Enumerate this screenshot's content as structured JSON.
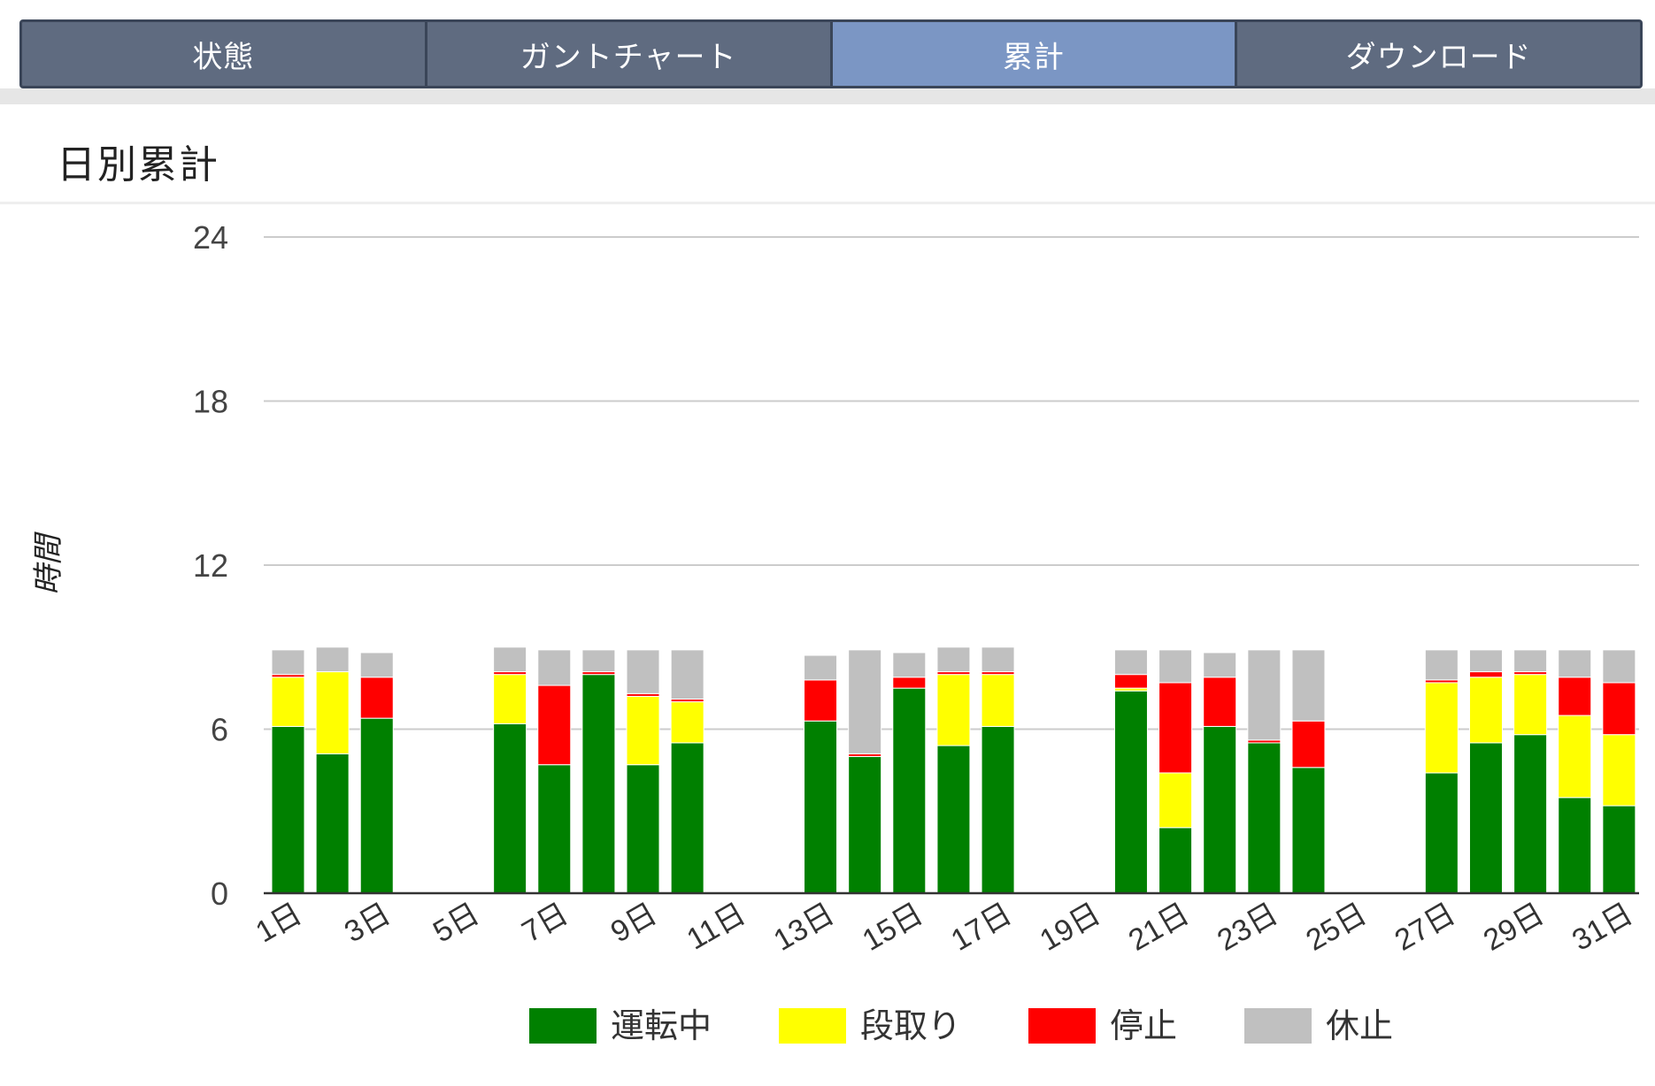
{
  "tabs": [
    {
      "label": "状態",
      "active": false
    },
    {
      "label": "ガントチャート",
      "active": false
    },
    {
      "label": "累計",
      "active": true
    },
    {
      "label": "ダウンロード",
      "active": false
    }
  ],
  "section": {
    "title": "日別累計"
  },
  "colors": {
    "運転中": "#008000",
    "段取り": "#ffff00",
    "停止": "#ff0000",
    "休止": "#c0c0c0",
    "tab": "#5f6b80",
    "tab_active": "#7b96c4"
  },
  "chart_data": {
    "type": "bar",
    "stacked": true,
    "ylabel": "時間",
    "xlabel": "",
    "ylim": [
      0,
      24
    ],
    "yticks": [
      0,
      6,
      12,
      18,
      24
    ],
    "grid": true,
    "legend_position": "bottom",
    "categories": [
      "1日",
      "2日",
      "3日",
      "4日",
      "5日",
      "6日",
      "7日",
      "8日",
      "9日",
      "10日",
      "11日",
      "12日",
      "13日",
      "14日",
      "15日",
      "16日",
      "17日",
      "18日",
      "19日",
      "20日",
      "21日",
      "22日",
      "23日",
      "24日",
      "25日",
      "26日",
      "27日",
      "28日",
      "29日",
      "30日",
      "31日"
    ],
    "xtick_labels": [
      "1日",
      "3日",
      "5日",
      "7日",
      "9日",
      "11日",
      "13日",
      "15日",
      "17日",
      "19日",
      "21日",
      "23日",
      "25日",
      "27日",
      "29日",
      "31日"
    ],
    "series": [
      {
        "name": "運転中",
        "color": "#008000",
        "values": [
          6.1,
          5.1,
          6.4,
          0,
          0,
          6.2,
          4.7,
          8.0,
          4.7,
          5.5,
          0,
          0,
          6.3,
          5.0,
          7.5,
          5.4,
          6.1,
          0,
          0,
          7.4,
          2.4,
          6.1,
          5.5,
          4.6,
          0,
          0,
          4.4,
          5.5,
          5.8,
          3.5,
          3.2
        ]
      },
      {
        "name": "段取り",
        "color": "#ffff00",
        "values": [
          1.8,
          3.0,
          0,
          0,
          0,
          1.8,
          0,
          0,
          2.5,
          1.5,
          0,
          0,
          0,
          0,
          0,
          2.6,
          1.9,
          0,
          0,
          0.1,
          2.0,
          0,
          0,
          0,
          0,
          0,
          3.3,
          2.4,
          2.2,
          3.0,
          2.6
        ]
      },
      {
        "name": "停止",
        "color": "#ff0000",
        "values": [
          0.1,
          0.0,
          1.5,
          0,
          0,
          0.1,
          2.9,
          0.1,
          0.1,
          0.1,
          0,
          0,
          1.5,
          0.1,
          0.4,
          0.1,
          0.1,
          0,
          0,
          0.5,
          3.3,
          1.8,
          0.1,
          1.7,
          0,
          0,
          0.1,
          0.2,
          0.1,
          1.4,
          1.9
        ]
      },
      {
        "name": "休止",
        "color": "#c0c0c0",
        "values": [
          0.9,
          0.9,
          0.9,
          0,
          0,
          0.9,
          1.3,
          0.8,
          1.6,
          1.8,
          0,
          0,
          0.9,
          3.8,
          0.9,
          0.9,
          0.9,
          0,
          0,
          0.9,
          1.2,
          0.9,
          3.3,
          2.6,
          0,
          0,
          1.1,
          0.8,
          0.8,
          1.0,
          1.2
        ]
      }
    ]
  }
}
